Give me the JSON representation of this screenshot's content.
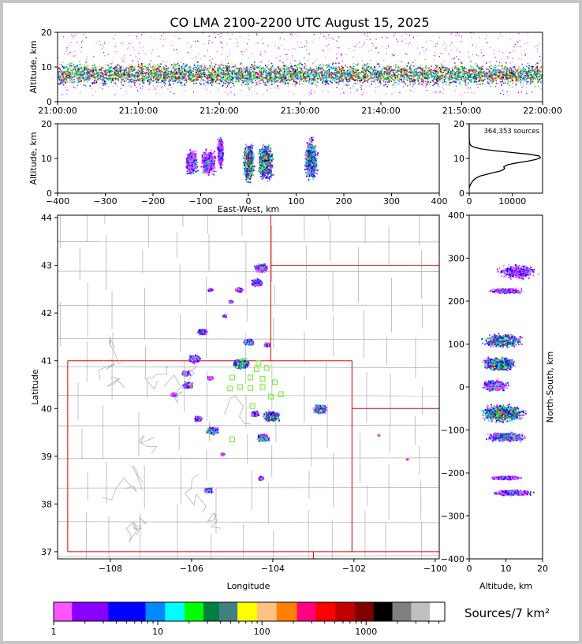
{
  "chart_data": [
    {
      "id": "time-altitude",
      "type": "heatmap",
      "title": "CO LMA 2100-2200 UTC August 15, 2025",
      "xlabel": "",
      "ylabel": "Altitude, km",
      "x_ticks": [
        "21:00:00",
        "21:10:00",
        "21:20:00",
        "21:30:00",
        "21:40:00",
        "21:50:00",
        "22:00:00"
      ],
      "xlim_minutes": [
        0,
        60
      ],
      "ylim": [
        0,
        20
      ],
      "y_ticks": [
        0,
        10,
        20
      ],
      "dense_band_km": [
        4,
        12
      ],
      "sparse_band_km": [
        2,
        20
      ]
    },
    {
      "id": "east-west-altitude",
      "type": "heatmap",
      "xlabel": "East-West, km",
      "ylabel": "Altitude, km",
      "xlim": [
        -400,
        400
      ],
      "ylim": [
        0,
        20
      ],
      "x_ticks": [
        -400,
        -300,
        -200,
        -100,
        0,
        100,
        200,
        300,
        400
      ],
      "y_ticks": [
        0,
        10,
        20
      ],
      "clusters": [
        {
          "x": -120,
          "width": 30,
          "alt": 9,
          "depth": 8,
          "intensity": 2
        },
        {
          "x": -85,
          "width": 35,
          "alt": 9,
          "depth": 8,
          "intensity": 2
        },
        {
          "x": -60,
          "width": 15,
          "alt": 12,
          "depth": 10,
          "intensity": 1
        },
        {
          "x": 0,
          "width": 25,
          "alt": 9,
          "depth": 12,
          "intensity": 5
        },
        {
          "x": 35,
          "width": 35,
          "alt": 9,
          "depth": 12,
          "intensity": 5
        },
        {
          "x": 130,
          "width": 30,
          "alt": 10,
          "depth": 14,
          "intensity": 4
        }
      ]
    },
    {
      "id": "altitude-histogram",
      "type": "line",
      "annotation": "364,353 sources",
      "xlim": [
        0,
        17000
      ],
      "ylim": [
        0,
        20
      ],
      "x_ticks": [
        0,
        10000
      ],
      "y_ticks": [
        0,
        10,
        20
      ],
      "x": [
        0,
        300,
        800,
        1500,
        2500,
        4000,
        5600,
        7000,
        7800,
        8200,
        8000,
        9000,
        11000,
        13500,
        15500,
        16500,
        16200,
        14000,
        10000,
        6000,
        3000,
        1200,
        400,
        150,
        50,
        0,
        0
      ],
      "y": [
        1.5,
        2.5,
        3.5,
        4.3,
        4.9,
        5.4,
        5.9,
        6.3,
        6.7,
        7.1,
        7.6,
        8.2,
        8.7,
        9.2,
        9.7,
        10.2,
        10.7,
        11.2,
        11.7,
        12.2,
        12.7,
        13.2,
        13.7,
        14.2,
        14.8,
        16.0,
        20.0
      ]
    },
    {
      "id": "plan-view",
      "type": "heatmap",
      "xlabel": "Longitude",
      "ylabel": "Latitude",
      "xlim": [
        -109.3,
        -99.9
      ],
      "ylim": [
        36.85,
        44.05
      ],
      "x_ticks": [
        -108,
        -106,
        -104,
        -102,
        -100
      ],
      "y_ticks": [
        37,
        38,
        39,
        40,
        41,
        42,
        43,
        44
      ],
      "stations": [
        [
          -104.7,
          41.0
        ],
        [
          -104.4,
          40.82
        ],
        [
          -104.15,
          40.85
        ],
        [
          -104.35,
          40.95
        ],
        [
          -105.0,
          40.65
        ],
        [
          -104.55,
          40.65
        ],
        [
          -104.25,
          40.62
        ],
        [
          -103.95,
          40.55
        ],
        [
          -104.8,
          40.45
        ],
        [
          -105.05,
          40.42
        ],
        [
          -104.55,
          40.43
        ],
        [
          -104.25,
          40.45
        ],
        [
          -104.05,
          40.25
        ],
        [
          -103.8,
          40.3
        ],
        [
          -104.5,
          40.05
        ],
        [
          -105.0,
          39.35
        ]
      ],
      "storm_cells": [
        {
          "lon": -104.3,
          "lat": 42.95,
          "size": 0.35,
          "intensity": 2
        },
        {
          "lon": -104.4,
          "lat": 42.65,
          "size": 0.3,
          "intensity": 2
        },
        {
          "lon": -104.85,
          "lat": 42.5,
          "size": 0.2,
          "intensity": 1
        },
        {
          "lon": -105.55,
          "lat": 42.5,
          "size": 0.12,
          "intensity": 1
        },
        {
          "lon": -105.05,
          "lat": 42.25,
          "size": 0.1,
          "intensity": 1
        },
        {
          "lon": -105.2,
          "lat": 41.95,
          "size": 0.1,
          "intensity": 1
        },
        {
          "lon": -105.75,
          "lat": 41.62,
          "size": 0.25,
          "intensity": 2
        },
        {
          "lon": -104.6,
          "lat": 41.4,
          "size": 0.25,
          "intensity": 3
        },
        {
          "lon": -104.15,
          "lat": 41.35,
          "size": 0.15,
          "intensity": 3
        },
        {
          "lon": -104.8,
          "lat": 40.95,
          "size": 0.4,
          "intensity": 5
        },
        {
          "lon": -105.95,
          "lat": 41.05,
          "size": 0.3,
          "intensity": 2
        },
        {
          "lon": -106.15,
          "lat": 40.75,
          "size": 0.2,
          "intensity": 2
        },
        {
          "lon": -106.1,
          "lat": 40.5,
          "size": 0.25,
          "intensity": 3
        },
        {
          "lon": -105.55,
          "lat": 40.65,
          "size": 0.15,
          "intensity": 1
        },
        {
          "lon": -106.45,
          "lat": 40.3,
          "size": 0.15,
          "intensity": 1
        },
        {
          "lon": -104.05,
          "lat": 39.85,
          "size": 0.4,
          "intensity": 5
        },
        {
          "lon": -104.45,
          "lat": 39.9,
          "size": 0.2,
          "intensity": 3
        },
        {
          "lon": -102.85,
          "lat": 40.0,
          "size": 0.35,
          "intensity": 4
        },
        {
          "lon": -105.5,
          "lat": 39.55,
          "size": 0.3,
          "intensity": 3
        },
        {
          "lon": -105.85,
          "lat": 39.8,
          "size": 0.2,
          "intensity": 2
        },
        {
          "lon": -104.25,
          "lat": 39.4,
          "size": 0.3,
          "intensity": 3
        },
        {
          "lon": -104.3,
          "lat": 38.55,
          "size": 0.15,
          "intensity": 1
        },
        {
          "lon": -105.6,
          "lat": 38.3,
          "size": 0.2,
          "intensity": 2
        },
        {
          "lon": -105.25,
          "lat": 39.05,
          "size": 0.1,
          "intensity": 1
        },
        {
          "lon": -101.4,
          "lat": 39.45,
          "size": 0.05,
          "intensity": 0
        },
        {
          "lon": -100.7,
          "lat": 38.95,
          "size": 0.05,
          "intensity": 0
        }
      ]
    },
    {
      "id": "altitude-north-south",
      "type": "heatmap",
      "xlabel": "Altitude, km",
      "ylabel": "North-South, km",
      "xlim": [
        0,
        20
      ],
      "ylim": [
        -400,
        400
      ],
      "x_ticks": [
        0,
        10,
        20
      ],
      "y_ticks": [
        -400,
        -300,
        -200,
        -100,
        0,
        100,
        200,
        300,
        400
      ],
      "clusters": [
        {
          "y": 270,
          "height": 40,
          "alt": 13,
          "depth": 12,
          "intensity": 1
        },
        {
          "y": 225,
          "height": 15,
          "alt": 10,
          "depth": 10,
          "intensity": 1
        },
        {
          "y": 110,
          "height": 35,
          "alt": 9,
          "depth": 12,
          "intensity": 4
        },
        {
          "y": 55,
          "height": 35,
          "alt": 8,
          "depth": 10,
          "intensity": 5
        },
        {
          "y": 5,
          "height": 30,
          "alt": 7,
          "depth": 8,
          "intensity": 2
        },
        {
          "y": -60,
          "height": 45,
          "alt": 9,
          "depth": 14,
          "intensity": 5
        },
        {
          "y": -115,
          "height": 25,
          "alt": 10,
          "depth": 12,
          "intensity": 3
        },
        {
          "y": -210,
          "height": 10,
          "alt": 10,
          "depth": 10,
          "intensity": 1
        },
        {
          "y": -245,
          "height": 15,
          "alt": 12,
          "depth": 12,
          "intensity": 2
        }
      ]
    }
  ],
  "colorbar": {
    "label": "Sources/7 km²",
    "tick_labels": [
      "1",
      "10",
      "100",
      "1000"
    ],
    "tick_values": [
      1,
      10,
      100,
      1000
    ],
    "range": [
      1,
      5000
    ],
    "colors": [
      "#ff55ff",
      "#8800ff",
      "#0000ff",
      "#0088ff",
      "#00ffff",
      "#00ff00",
      "#008040",
      "#408080",
      "#ffff00",
      "#ffc080",
      "#ff8000",
      "#ff0080",
      "#ff0000",
      "#c00000",
      "#800000",
      "#000000",
      "#808080",
      "#c0c0c0",
      "#ffffff"
    ]
  }
}
